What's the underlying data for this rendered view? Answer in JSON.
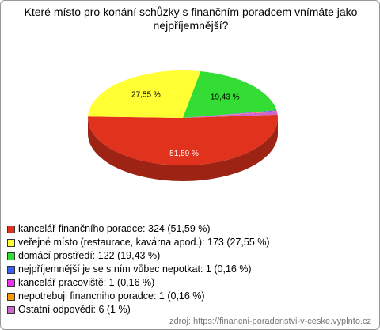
{
  "chart_data": {
    "type": "pie",
    "title": "Které místo pro konání schůzky s finančním poradcem vnímáte jako nejpříjemnější?",
    "categories": [
      "kancelář finančního poradce",
      "veřejné místo (restaurace, kavárna apod.)",
      "domácí prostředí",
      "nejpříjemnější je se s ním vůbec nepotkat",
      "kancelář pracoviště",
      "nepotrebuji financniho poradce",
      "Ostatní odpovědi"
    ],
    "legend_labels": [
      "kancelář finančního poradce: 324 (51,59 %)",
      "veřejné místo (restaurace, kavárna apod.): 173 (27,55 %)",
      "domácí prostředí: 122 (19,43 %)",
      "nejpříjemnější je se s ním vůbec nepotkat: 1 (0,16 %)",
      "kancelář pracoviště: 1 (0,16 %)",
      "nepotrebuji financniho poradce: 1 (0,16 %)",
      "Ostatní odpovědi: 6 (1 %)"
    ],
    "values": [
      51.59,
      27.55,
      19.43,
      0.16,
      0.16,
      0.16,
      1
    ],
    "value_labels": [
      "51,59 %",
      "27,55 %",
      "19,43 %",
      null,
      null,
      null,
      null
    ],
    "colors": [
      "#e0321c",
      "#ffff33",
      "#33dd33",
      "#3a5fff",
      "#ee33ee",
      "#ff9900",
      "#cc66cc"
    ],
    "source": "zdroj: https://financni-poradenstvi-v-ceske.vyplnto.cz"
  }
}
